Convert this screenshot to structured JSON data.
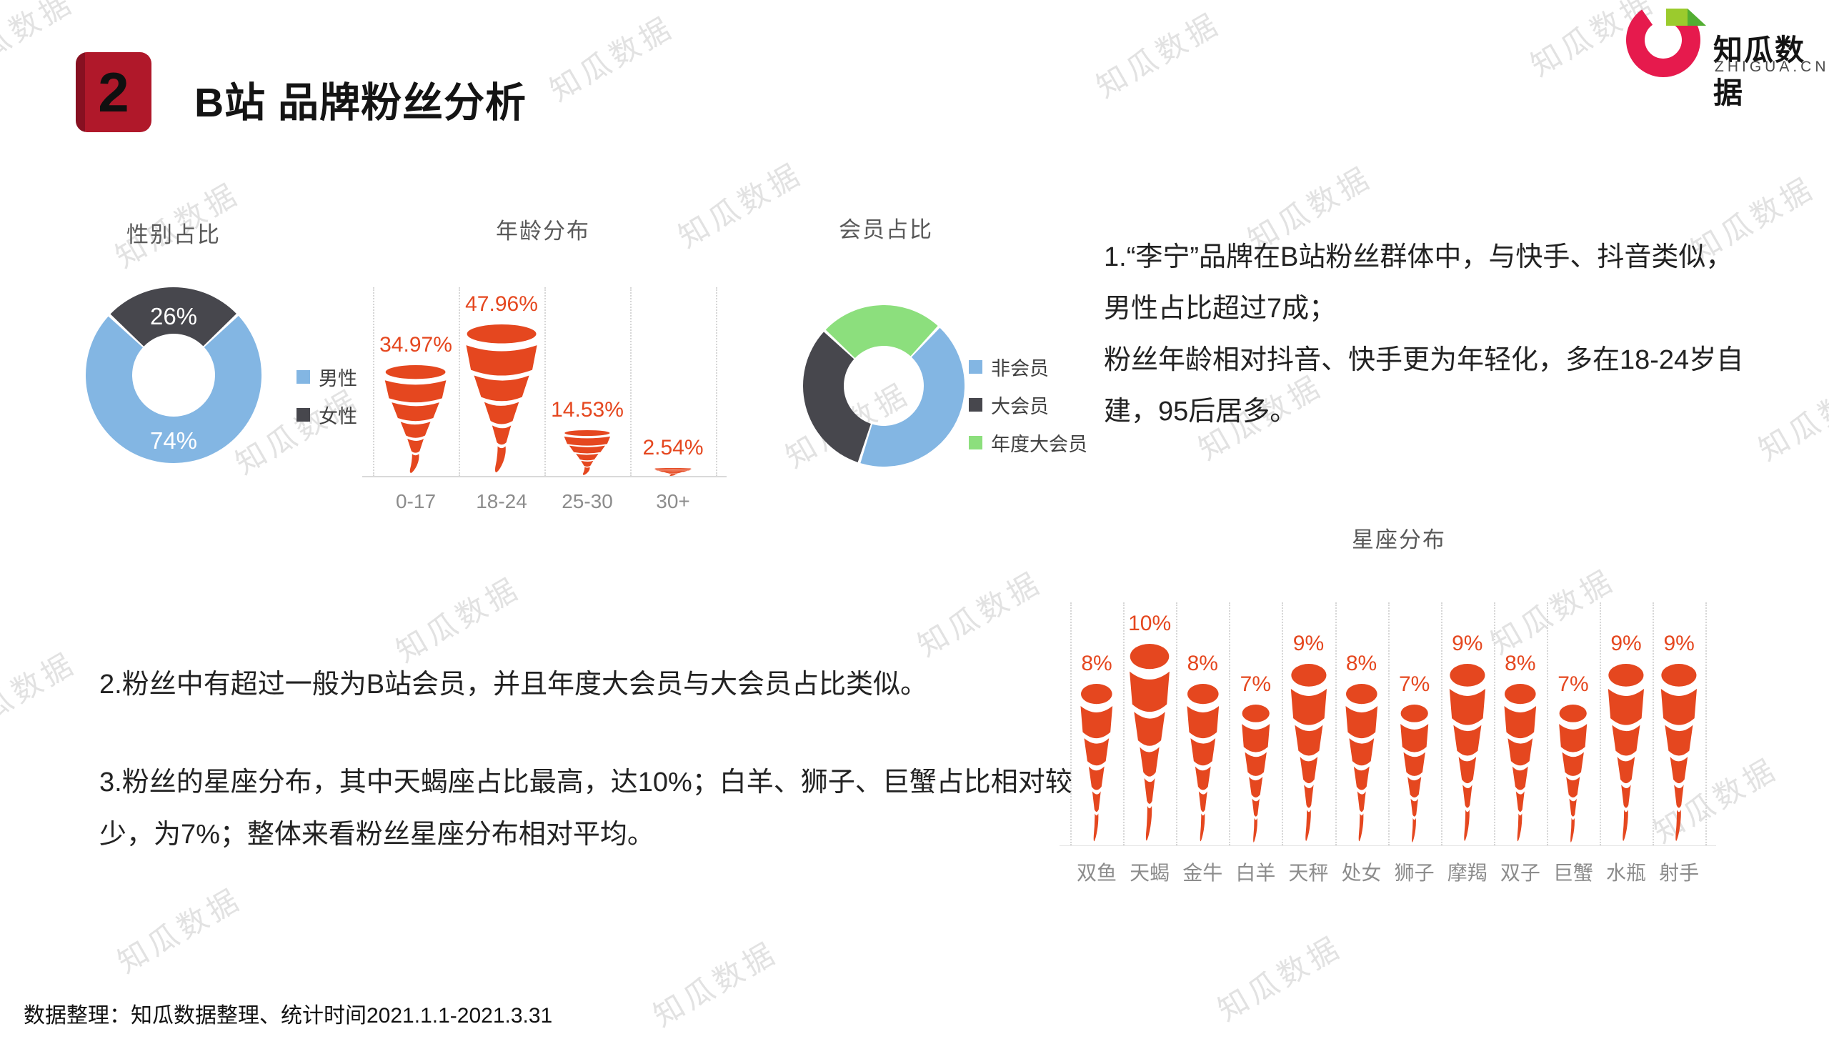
{
  "page": {
    "section_number": "2",
    "title": "B站 品牌粉丝分析",
    "footer": "数据整理：知瓜数据整理、统计时间2021.1.1-2021.3.31",
    "watermark_text": "知瓜数据"
  },
  "logo": {
    "name": "知瓜数据",
    "domain": "ZHIGUA.CN",
    "red": "#e61a4d",
    "green_light": "#9bcb2d",
    "green_dark": "#52ae32"
  },
  "colors": {
    "accent_red": "#b0182a",
    "tornado_orange": "#e5471f",
    "male_blue": "#83b6e3",
    "female_dark": "#47474d",
    "member_green": "#8cdf7d"
  },
  "chart_data": [
    {
      "type": "pie",
      "variant": "donut",
      "title": "性别占比",
      "labels": [
        "男性",
        "女性"
      ],
      "values": [
        74,
        26
      ],
      "value_labels": [
        "74%",
        "26%"
      ],
      "colors": [
        "#83b6e3",
        "#47474d"
      ],
      "legend_position": "right",
      "start_angle_deg": -47
    },
    {
      "type": "bar",
      "variant": "tornado-pictogram",
      "title": "年龄分布",
      "categories": [
        "0-17",
        "18-24",
        "25-30",
        "30+"
      ],
      "values": [
        34.97,
        47.96,
        14.53,
        2.54
      ],
      "value_labels": [
        "34.97%",
        "47.96%",
        "14.53%",
        "2.54%"
      ],
      "bar_color": "#e5471f",
      "ylim": [
        0,
        55
      ],
      "grid": "dotted-vertical"
    },
    {
      "type": "pie",
      "variant": "donut",
      "title": "会员占比",
      "labels": [
        "非会员",
        "大会员",
        "年度大会员"
      ],
      "values": [
        43,
        32,
        25
      ],
      "value_labels": [],
      "colors": [
        "#83b6e3",
        "#47474d",
        "#8cdf7d"
      ],
      "legend_position": "right",
      "start_angle_deg": -47,
      "order_from_start": [
        "年度大会员",
        "非会员",
        "大会员"
      ]
    },
    {
      "type": "bar",
      "variant": "tornado-pictogram",
      "title": "星座分布",
      "categories": [
        "双鱼",
        "天蝎",
        "金牛",
        "白羊",
        "天秤",
        "处女",
        "狮子",
        "摩羯",
        "双子",
        "巨蟹",
        "水瓶",
        "射手"
      ],
      "values": [
        8,
        10,
        8,
        7,
        9,
        8,
        7,
        9,
        8,
        7,
        9,
        9
      ],
      "value_labels": [
        "8%",
        "10%",
        "8%",
        "7%",
        "9%",
        "8%",
        "7%",
        "9%",
        "8%",
        "7%",
        "9%",
        "9%"
      ],
      "bar_color": "#e5471f",
      "ylim": [
        0,
        12
      ],
      "grid": "dotted-vertical"
    }
  ],
  "texts": {
    "point1_lines": [
      "1.“李宁”品牌在B站粉丝群体中，与快手、抖音类似，",
      "男性占比超过7成；",
      "粉丝年龄相对抖音、快手更为年轻化，多在18-24岁自",
      "建，95后居多。"
    ],
    "point2": "2.粉丝中有超过一般为B站会员，并且年度大会员与大会员占比类似。",
    "point3_lines": [
      "3.粉丝的星座分布，其中天蝎座占比最高，达10%；白羊、狮子、巨蟹占比相对较",
      "少，为7%；整体来看粉丝星座分布相对平均。"
    ]
  }
}
